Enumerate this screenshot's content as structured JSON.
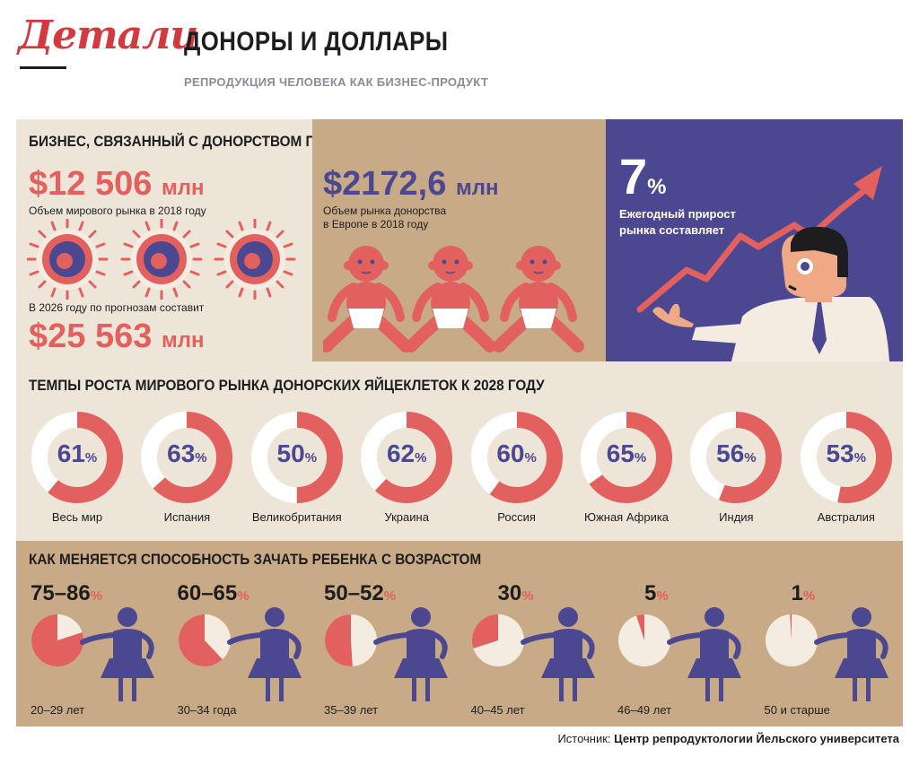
{
  "header": {
    "logo": "Детали",
    "title": "ДОНОРЫ И ДОЛЛАРЫ",
    "subtitle": "РЕПРОДУКЦИЯ ЧЕЛОВЕКА КАК БИЗНЕС-ПРОДУКТ"
  },
  "business": {
    "title": "БИЗНЕС, СВЯЗАННЫЙ С ДОНОРСТВОМ ПОЛОВЫХ КЛЕТОК",
    "world_value": "$12 506",
    "world_unit": "млн",
    "world_caption": "Объем мирового рынка в 2018 году",
    "forecast_caption": "В 2026 году по прогнозам составит",
    "forecast_value": "$25 563",
    "forecast_unit": "млн",
    "europe_value": "$2172,6",
    "europe_unit": "млн",
    "europe_caption_1": "Объем рынка донорства",
    "europe_caption_2": "в Европе в 2018 году",
    "growth_value": "7",
    "growth_unit": "%",
    "growth_caption_1": "Ежегодный прирост",
    "growth_caption_2": "рынка составляет"
  },
  "egg_growth": {
    "title": "ТЕМПЫ РОСТА МИРОВОГО РЫНКА ДОНОРСКИХ ЯЙЦЕКЛЕТОК К 2028 ГОДУ",
    "unit": "%",
    "items": [
      {
        "label": "Весь мир",
        "value": 61
      },
      {
        "label": "Испания",
        "value": 63
      },
      {
        "label": "Великобритания",
        "value": 50
      },
      {
        "label": "Украина",
        "value": 62
      },
      {
        "label": "Россия",
        "value": 60
      },
      {
        "label": "Южная Африка",
        "value": 65
      },
      {
        "label": "Индия",
        "value": 56
      },
      {
        "label": "Австралия",
        "value": 53
      }
    ]
  },
  "fertility": {
    "title": "КАК МЕНЯЕТСЯ СПОСОБНОСТЬ ЗАЧАТЬ РЕБЕНКА С ВОЗРАСТОМ",
    "unit": "%",
    "items": [
      {
        "value": "75–86",
        "fraction": 0.8,
        "age": "20–29 лет"
      },
      {
        "value": "60–65",
        "fraction": 0.62,
        "age": "30–34 года"
      },
      {
        "value": "50–52",
        "fraction": 0.51,
        "age": "35–39 лет"
      },
      {
        "value": "30",
        "fraction": 0.3,
        "age": "40–45 лет"
      },
      {
        "value": "5",
        "fraction": 0.05,
        "age": "46–49 лет"
      },
      {
        "value": "1",
        "fraction": 0.01,
        "age": "50 и старше"
      }
    ]
  },
  "source": {
    "prefix": "Источник:",
    "name": "Центр репродуктологии Йельского университета"
  },
  "colors": {
    "red": "#e2605e",
    "navy": "#4b4790",
    "beige": "#ece5d8",
    "tan": "#c8ab86",
    "cream": "#f4ece0"
  }
}
